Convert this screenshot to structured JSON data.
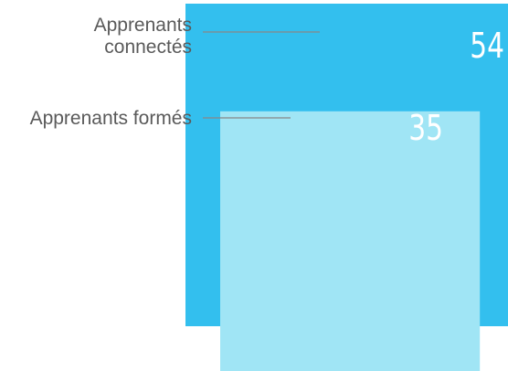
{
  "chart_data": {
    "type": "area",
    "title": "",
    "series": [
      {
        "name": "Apprenants connectés",
        "label_lines": [
          "Apprenants",
          "connectés"
        ],
        "value": 54,
        "color": "#33bfee"
      },
      {
        "name": "Apprenants formés",
        "label_lines": [
          "Apprenants formés"
        ],
        "value": 35,
        "color": "#a0e5f5"
      }
    ],
    "colors": {
      "leader_line": "#888888",
      "label_text": "#5a5a5a",
      "value_text": "#ffffff"
    }
  }
}
